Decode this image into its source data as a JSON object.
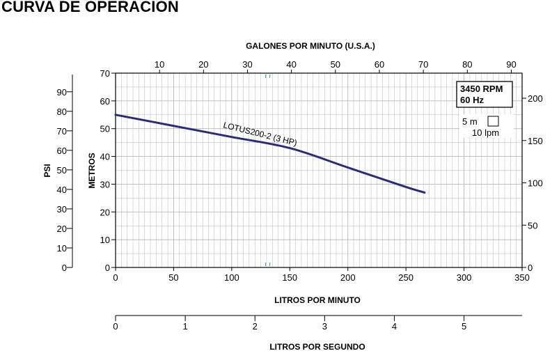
{
  "page": {
    "title": "CURVA DE OPERACIÓN"
  },
  "chart_data": {
    "type": "line",
    "title": "CURVA DE OPERACIÓN",
    "grid": true,
    "series": [
      {
        "name": "LOTUS200-2 (3 HP)",
        "color": "#2b2b7a",
        "x": [
          0,
          50,
          100,
          150,
          200,
          250,
          266
        ],
        "y": [
          55,
          51,
          47,
          43,
          36,
          29,
          27
        ]
      }
    ],
    "axes": {
      "bottom": {
        "label": "LITROS POR MINUTO",
        "min": 0,
        "max": 350,
        "ticks": [
          0,
          50,
          100,
          150,
          200,
          250,
          300,
          350
        ]
      },
      "top": {
        "label": "GALONES POR MINUTO (U.S.A.)",
        "ticks": [
          10,
          20,
          30,
          40,
          50,
          60,
          70,
          80,
          90
        ]
      },
      "left_inner": {
        "label": "METROS",
        "min": 0,
        "max": 70,
        "ticks": [
          0,
          10,
          20,
          30,
          40,
          50,
          60,
          70
        ]
      },
      "left_outer": {
        "label": "PSI",
        "ticks": [
          0,
          10,
          20,
          30,
          40,
          50,
          60,
          70,
          80,
          90
        ]
      },
      "right": {
        "ticks": [
          0,
          50,
          100,
          150,
          200
        ]
      },
      "lps": {
        "label": "LITROS POR SEGUNDO",
        "ticks": [
          0,
          1,
          2,
          3,
          4,
          5
        ]
      }
    },
    "legend": {
      "speed": "3450 RPM",
      "frequency": "60 Hz",
      "grid_height": "5 m",
      "grid_width": "10 lpm"
    }
  },
  "colors": {
    "curve": "#2b2b7a",
    "grid": "#b8b8b8",
    "marker": "#5aa0d8"
  }
}
